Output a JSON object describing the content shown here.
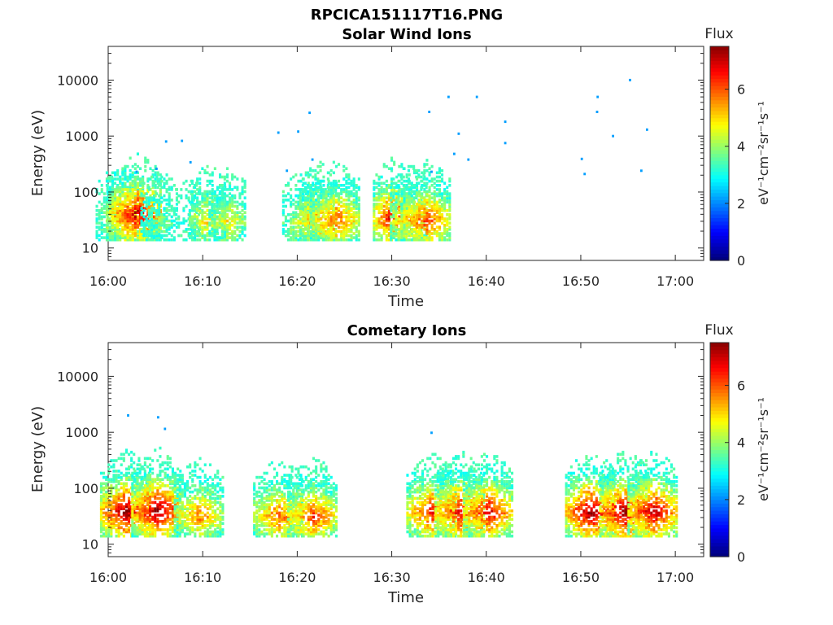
{
  "figure_title": "RPCICA151117T16.PNG",
  "colormap": [
    "#00007f",
    "#0000ff",
    "#007fff",
    "#00ffff",
    "#7fff7f",
    "#ffff00",
    "#ff7f00",
    "#ff0000",
    "#7f0000"
  ],
  "chart_data": [
    {
      "type": "heatmap",
      "title": "Solar Wind Ions",
      "xlabel": "Time",
      "ylabel": "Energy (eV)",
      "xlim": [
        "16:00",
        "17:03"
      ],
      "x_ticks": [
        "16:00",
        "16:10",
        "16:20",
        "16:30",
        "16:40",
        "16:50",
        "17:00"
      ],
      "y_scale": "log",
      "ylim": [
        6,
        40000
      ],
      "y_ticks": [
        10,
        100,
        1000,
        10000
      ],
      "colorbar": {
        "label": "Flux",
        "units": "eV⁻¹cm⁻²sr⁻¹s⁻¹",
        "range": [
          0,
          7.5
        ],
        "ticks": [
          0,
          2,
          4,
          6
        ]
      },
      "bursts": [
        {
          "t": 16.0,
          "e": 30,
          "w": 2,
          "a": 0.45
        },
        {
          "t": 16.03,
          "e": 35,
          "w": 3,
          "a": 0.8
        },
        {
          "t": 16.05,
          "e": 40,
          "w": 4,
          "a": 0.95
        },
        {
          "t": 16.09,
          "e": 30,
          "w": 3,
          "a": 0.4
        },
        {
          "t": 16.14,
          "e": 30,
          "w": 2,
          "a": 0.2
        },
        {
          "t": 16.175,
          "e": 32,
          "w": 3,
          "a": 0.6
        },
        {
          "t": 16.21,
          "e": 30,
          "w": 3,
          "a": 0.55
        },
        {
          "t": 16.34,
          "e": 28,
          "w": 3,
          "a": 0.5
        },
        {
          "t": 16.37,
          "e": 32,
          "w": 3,
          "a": 0.75
        },
        {
          "t": 16.4,
          "e": 32,
          "w": 4,
          "a": 0.75
        },
        {
          "t": 16.5,
          "e": 35,
          "w": 3,
          "a": 0.9
        },
        {
          "t": 16.53,
          "e": 32,
          "w": 3,
          "a": 0.7
        },
        {
          "t": 16.56,
          "e": 32,
          "w": 4,
          "a": 0.8
        }
      ],
      "points": [
        {
          "t": 16.102,
          "e": 800
        },
        {
          "t": 16.13,
          "e": 820
        },
        {
          "t": 16.145,
          "e": 340
        },
        {
          "t": 16.085,
          "e": 260
        },
        {
          "t": 16.05,
          "e": 230
        },
        {
          "t": 16.3,
          "e": 1150
        },
        {
          "t": 16.335,
          "e": 1200
        },
        {
          "t": 16.355,
          "e": 2600
        },
        {
          "t": 16.315,
          "e": 240
        },
        {
          "t": 16.36,
          "e": 380
        },
        {
          "t": 16.566,
          "e": 2700
        },
        {
          "t": 16.6,
          "e": 5000
        },
        {
          "t": 16.618,
          "e": 1100
        },
        {
          "t": 16.65,
          "e": 5000
        },
        {
          "t": 16.7,
          "e": 1800
        },
        {
          "t": 16.7,
          "e": 750
        },
        {
          "t": 16.57,
          "e": 230
        },
        {
          "t": 16.61,
          "e": 480
        },
        {
          "t": 16.635,
          "e": 380
        },
        {
          "t": 16.863,
          "e": 5000
        },
        {
          "t": 16.862,
          "e": 2700
        },
        {
          "t": 16.92,
          "e": 10000
        },
        {
          "t": 16.89,
          "e": 1000
        },
        {
          "t": 16.95,
          "e": 1300
        },
        {
          "t": 16.835,
          "e": 390
        },
        {
          "t": 16.84,
          "e": 210
        },
        {
          "t": 16.94,
          "e": 240
        }
      ]
    },
    {
      "type": "heatmap",
      "title": "Cometary Ions",
      "xlabel": "Time",
      "ylabel": "Energy (eV)",
      "xlim": [
        "16:00",
        "17:03"
      ],
      "x_ticks": [
        "16:00",
        "16:10",
        "16:20",
        "16:30",
        "16:40",
        "16:50",
        "17:00"
      ],
      "y_scale": "log",
      "ylim": [
        6,
        40000
      ],
      "y_ticks": [
        10,
        100,
        1000,
        10000
      ],
      "colorbar": {
        "label": "Flux",
        "units": "eV⁻¹cm⁻²sr⁻¹s⁻¹",
        "range": [
          0,
          7.5
        ],
        "ticks": [
          0,
          2,
          4,
          6
        ]
      },
      "bursts": [
        {
          "t": 16.03,
          "e": 38,
          "w": 4,
          "a": 1.0
        },
        {
          "t": 16.085,
          "e": 40,
          "w": 4,
          "a": 1.0
        },
        {
          "t": 16.16,
          "e": 32,
          "w": 4,
          "a": 0.7
        },
        {
          "t": 16.3,
          "e": 32,
          "w": 4,
          "a": 0.75
        },
        {
          "t": 16.36,
          "e": 32,
          "w": 4,
          "a": 0.8
        },
        {
          "t": 16.57,
          "e": 38,
          "w": 4,
          "a": 0.85
        },
        {
          "t": 16.62,
          "e": 38,
          "w": 4,
          "a": 0.9
        },
        {
          "t": 16.67,
          "e": 38,
          "w": 4,
          "a": 0.9
        },
        {
          "t": 16.85,
          "e": 38,
          "w": 4,
          "a": 1.0
        },
        {
          "t": 16.91,
          "e": 38,
          "w": 4,
          "a": 1.0
        },
        {
          "t": 16.96,
          "e": 38,
          "w": 4,
          "a": 0.95
        }
      ],
      "points": [
        {
          "t": 16.035,
          "e": 2000
        },
        {
          "t": 16.088,
          "e": 1850
        },
        {
          "t": 16.1,
          "e": 1150
        },
        {
          "t": 16.57,
          "e": 980
        }
      ]
    }
  ]
}
